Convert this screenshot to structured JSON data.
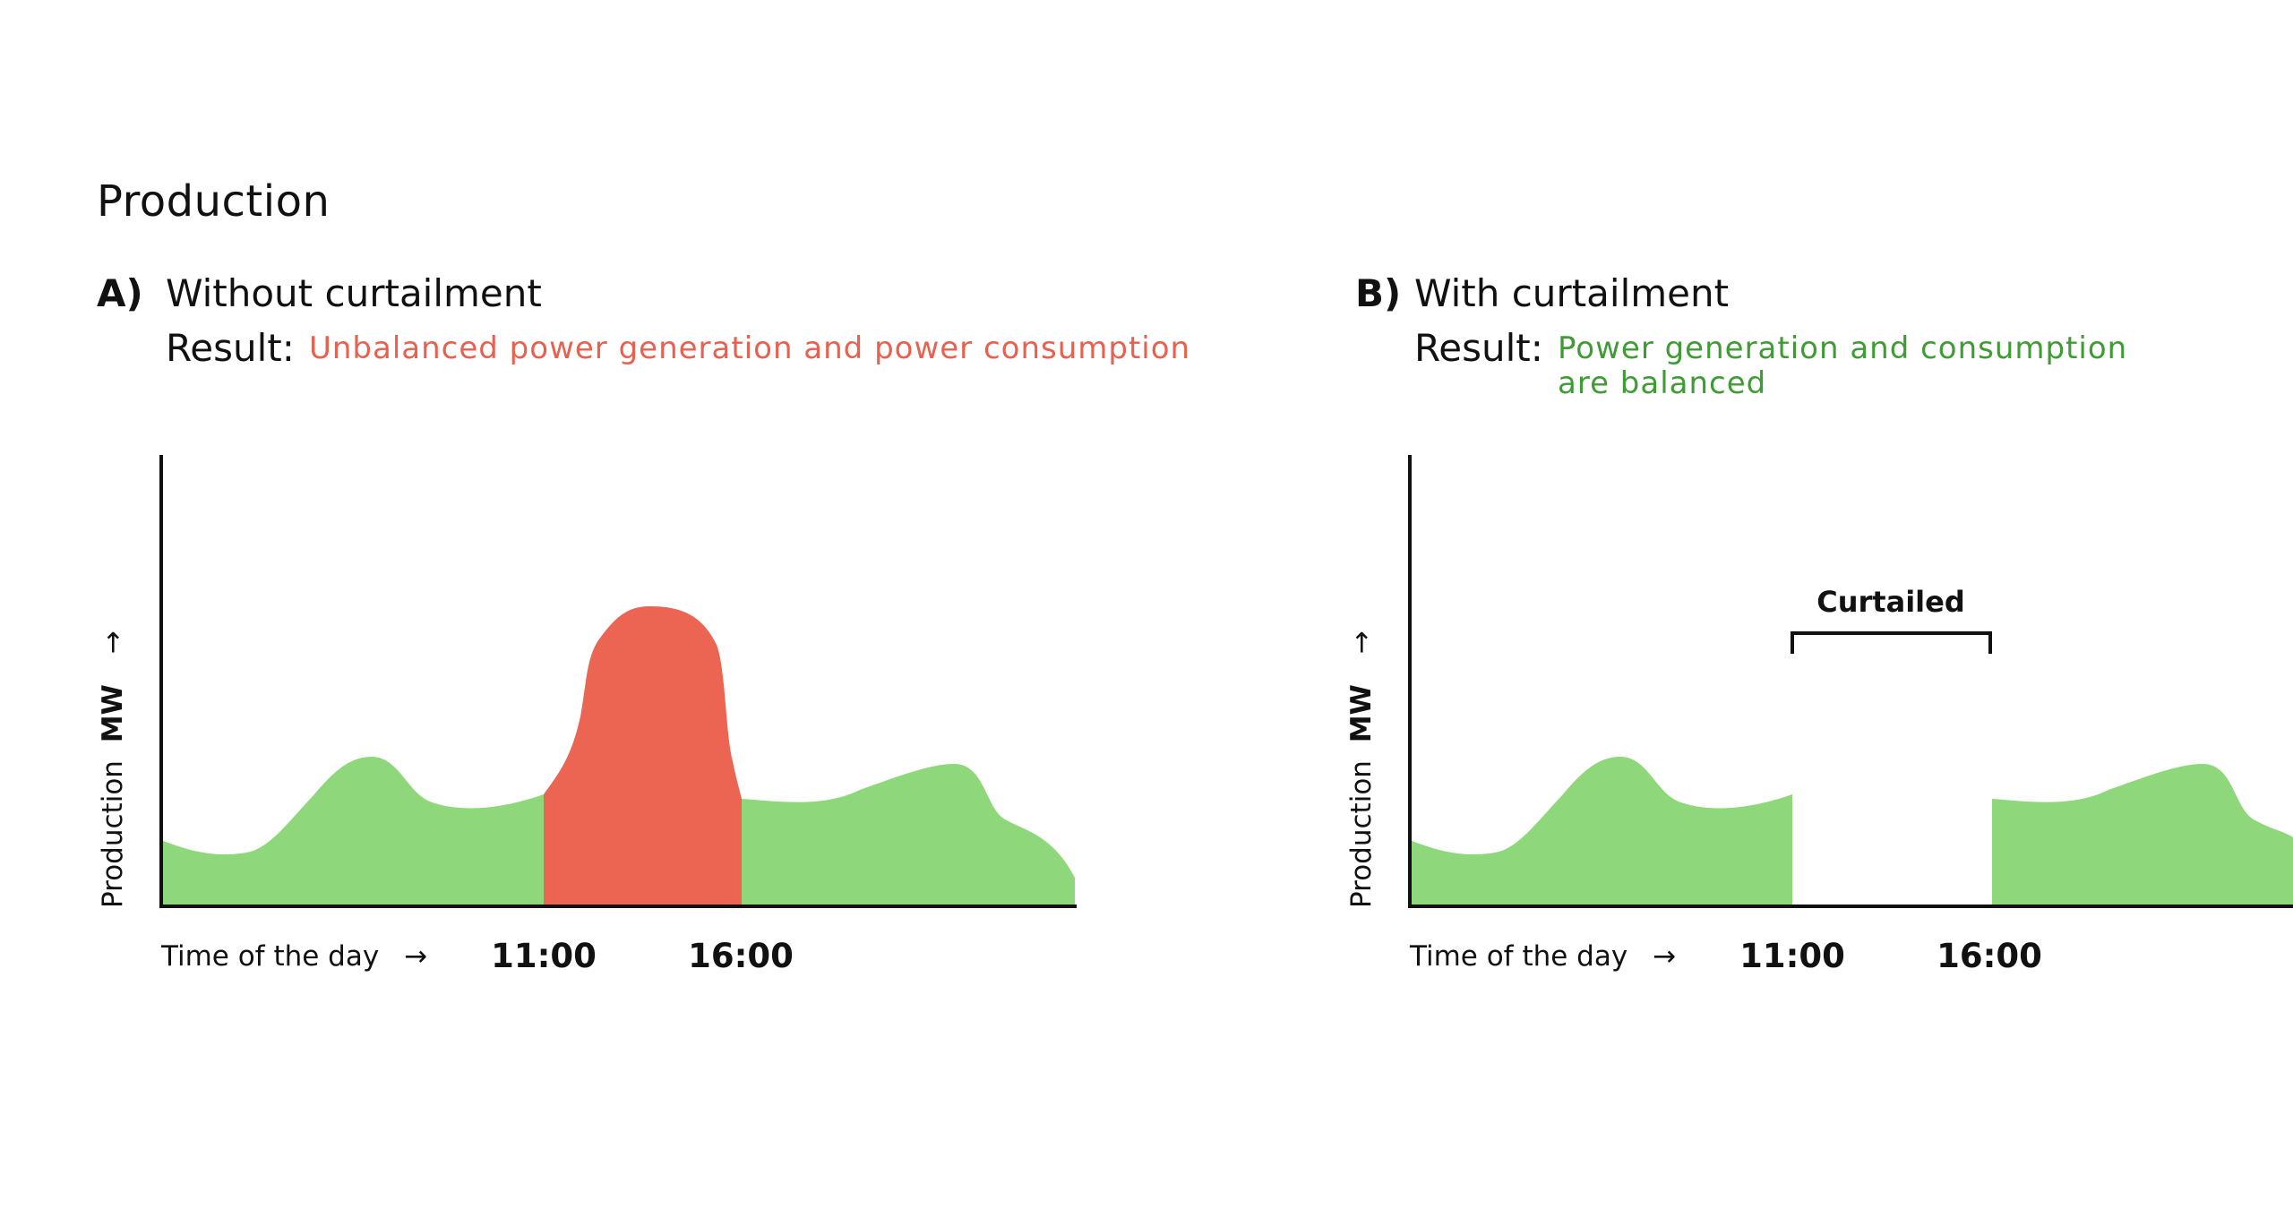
{
  "title": "Production",
  "panels": [
    {
      "letter": "A)",
      "heading": "Without curtailment",
      "result_label": "Result:",
      "result_lines": [
        "Unbalanced power generation and power consumption"
      ],
      "result_color": "#e8604f",
      "y_axis_label": "Production",
      "y_axis_unit": "MW",
      "y_axis_arrow": "→",
      "x_axis_label": "Time of the day",
      "x_axis_arrow": "→",
      "tick_labels": [
        "11:00",
        "16:00"
      ],
      "areas": [
        {
          "label": "balanced production",
          "color": "#8ed87b"
        },
        {
          "label": "surplus production",
          "color": "#ec6553"
        }
      ]
    },
    {
      "letter": "B)",
      "heading": "With curtailment",
      "result_label": "Result:",
      "result_lines": [
        "Power generation and consumption",
        "are balanced"
      ],
      "result_color": "#3f9c35",
      "y_axis_label": "Production",
      "y_axis_unit": "MW",
      "y_axis_arrow": "→",
      "x_axis_label": "Time of the day",
      "x_axis_arrow": "→",
      "tick_labels": [
        "11:00",
        "16:00"
      ],
      "annotation": "Curtailed",
      "areas": [
        {
          "label": "balanced production",
          "color": "#8ed87b"
        }
      ]
    }
  ]
}
